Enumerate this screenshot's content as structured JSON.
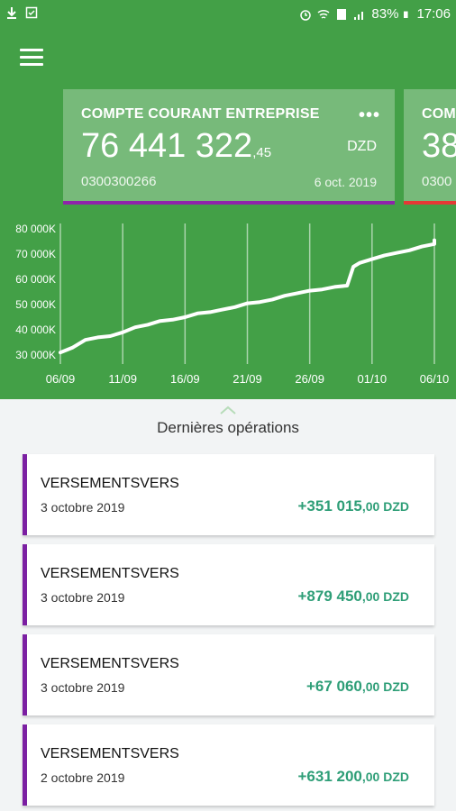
{
  "status_bar": {
    "battery": "83%",
    "time": "17:06"
  },
  "account_card": {
    "title": "COMPTE COURANT ENTREPRISE",
    "more": "•••",
    "amount_int": "76 441 322",
    "amount_dec": ",45",
    "currency": "DZD",
    "account_number": "0300300266",
    "date": "6 oct. 2019",
    "accent_color": "#8e24aa"
  },
  "peek_card": {
    "title": "COM",
    "amount": "38",
    "account_number": "0300",
    "accent_color": "#e53935"
  },
  "chart_data": {
    "type": "line",
    "x_ticks": [
      "06/09",
      "11/09",
      "16/09",
      "21/09",
      "26/09",
      "01/10",
      "06/10"
    ],
    "y_ticks": [
      "80 000K",
      "70 000K",
      "60 000K",
      "50 000K",
      "40 000K",
      "30 000K"
    ],
    "ylim": [
      30000,
      80000
    ],
    "xlim_days": [
      0,
      30
    ],
    "series": [
      {
        "points": [
          [
            0,
            31000
          ],
          [
            1,
            33000
          ],
          [
            2,
            36000
          ],
          [
            3,
            37000
          ],
          [
            4,
            37500
          ],
          [
            5,
            39000
          ],
          [
            6,
            41000
          ],
          [
            7,
            42000
          ],
          [
            8,
            43500
          ],
          [
            9,
            44000
          ],
          [
            10,
            45000
          ],
          [
            11,
            46500
          ],
          [
            12,
            47000
          ],
          [
            13,
            48000
          ],
          [
            14,
            49000
          ],
          [
            15,
            50500
          ],
          [
            16,
            51000
          ],
          [
            17,
            52000
          ],
          [
            18,
            53500
          ],
          [
            19,
            54500
          ],
          [
            20,
            55500
          ],
          [
            21,
            56000
          ],
          [
            22,
            57000
          ],
          [
            23,
            57500
          ],
          [
            23.5,
            65000
          ],
          [
            24,
            66500
          ],
          [
            25,
            68000
          ],
          [
            26,
            69500
          ],
          [
            27,
            70500
          ],
          [
            28,
            71500
          ],
          [
            29,
            73000
          ],
          [
            30,
            74000
          ],
          [
            31,
            75500
          ],
          [
            33,
            75500
          ]
        ]
      }
    ],
    "grid": "vertical",
    "line_color": "#ffffff"
  },
  "section": {
    "title": "Dernières opérations"
  },
  "operations": [
    {
      "label": "VERSEMENTSVERS",
      "date": "3 octobre 2019",
      "amount_int": "+351 015",
      "amount_dec": ",00 DZD"
    },
    {
      "label": "VERSEMENTSVERS",
      "date": "3 octobre 2019",
      "amount_int": "+879 450",
      "amount_dec": ",00 DZD"
    },
    {
      "label": "VERSEMENTSVERS",
      "date": "3 octobre 2019",
      "amount_int": "+67 060",
      "amount_dec": ",00 DZD"
    },
    {
      "label": "VERSEMENTSVERS",
      "date": "2 octobre 2019",
      "amount_int": "+631 200",
      "amount_dec": ",00 DZD"
    }
  ]
}
